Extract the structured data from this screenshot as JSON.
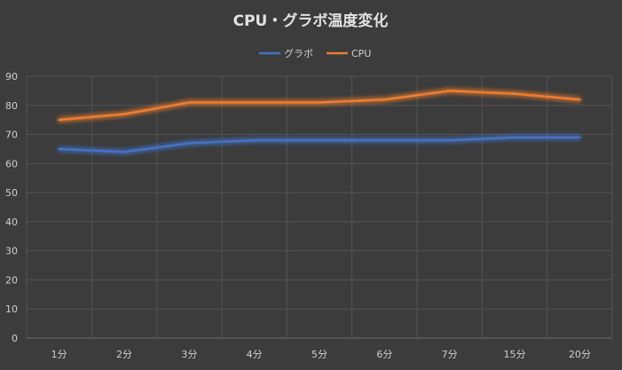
{
  "chart_data": {
    "type": "line",
    "title": "CPU・グラボ温度変化",
    "categories": [
      "1分",
      "2分",
      "3分",
      "4分",
      "5分",
      "6分",
      "7分",
      "15分",
      "20分"
    ],
    "series": [
      {
        "name": "グラボ",
        "color": "#4472c4",
        "values": [
          65,
          64,
          67,
          68,
          68,
          68,
          68,
          69,
          69
        ]
      },
      {
        "name": "CPU",
        "color": "#ed7d31",
        "values": [
          75,
          77,
          81,
          81,
          81,
          82,
          85,
          84,
          82
        ]
      }
    ],
    "ylim": [
      0,
      90
    ],
    "yticks": [
      0,
      10,
      20,
      30,
      40,
      50,
      60,
      70,
      80,
      90
    ],
    "grid": true,
    "legend_position": "top"
  }
}
